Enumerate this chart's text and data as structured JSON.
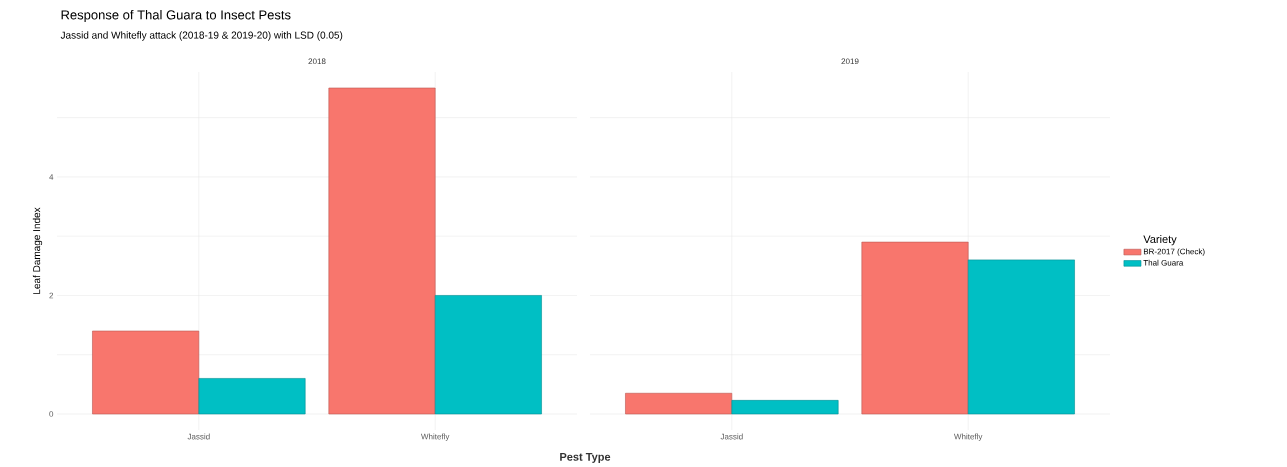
{
  "chart_data": [
    {
      "type": "bar",
      "title": "Response of Thal Guara to Insect Pests",
      "subtitle": "Jassid and Whitefly attack (2018-19 & 2019-20) with LSD (0.05)",
      "xlabel": "Pest Type",
      "ylabel": "Leaf Damage Index",
      "annotations": [
        "2018"
      ],
      "categories": [
        "Jassid",
        "Whitefly"
      ],
      "series": [
        {
          "color": "#f8766d",
          "values": [
            1.4,
            5.5
          ]
        },
        {
          "color": "#00bfc4",
          "values": [
            0.6,
            2.0
          ]
        }
      ],
      "ylim": [
        -0.27,
        5.77
      ],
      "yticks": [
        0,
        {
          "value": 1,
          "label": null
        },
        2,
        {
          "value": 3,
          "label": null
        },
        4,
        {
          "value": 5,
          "label": null
        }
      ],
      "grid": true
    },
    {
      "type": "bar",
      "annotations": [
        "2019"
      ],
      "categories": [
        "Jassid",
        "Whitefly"
      ],
      "series": [
        {
          "name": "BR-2017 (Check)",
          "color": "#f8766d",
          "values": [
            0.35,
            2.9
          ]
        },
        {
          "name": "Thal Guara",
          "color": "#00bfc4",
          "values": [
            0.23,
            2.6
          ]
        }
      ],
      "ylim": [
        -0.27,
        5.77
      ],
      "yticks": [
        0,
        {
          "value": 1,
          "label": null
        },
        2,
        {
          "value": 3,
          "label": null
        },
        4,
        {
          "value": 5,
          "label": null
        }
      ],
      "grid": true,
      "legend": "right",
      "legend_title": "Variety",
      "tick_labels": "x"
    }
  ]
}
